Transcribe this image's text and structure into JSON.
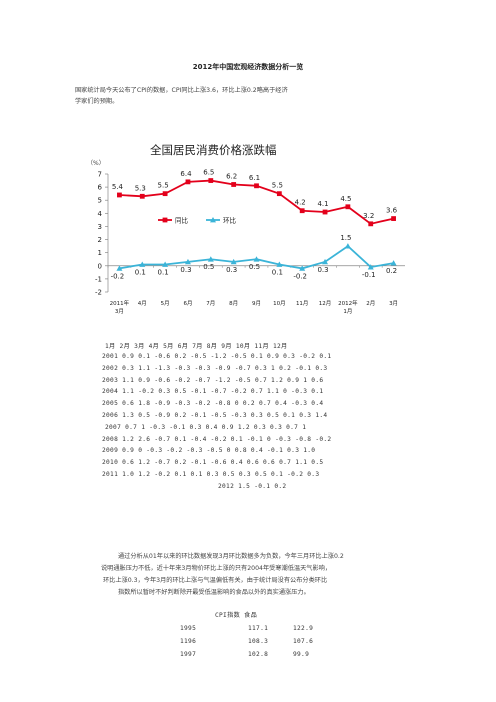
{
  "title": "2012年中国宏观经济数据分析一览",
  "intro": [
    "国家统计局今天公布了CPI的数据，CPI同比上涨3.6，环比上涨0.2略高于经济",
    "学家们的预期。"
  ],
  "chart_data": {
    "type": "line",
    "title": "全国居民消费价格涨跌幅",
    "unit": "（%）",
    "categories": [
      "2011年3月",
      "4月",
      "5月",
      "6月",
      "7月",
      "8月",
      "9月",
      "10月",
      "11月",
      "12月",
      "2012年1月",
      "2月",
      "3月"
    ],
    "ylim": [
      -2,
      7
    ],
    "yticks": [
      "7",
      "6",
      "5",
      "4",
      "3",
      "2",
      "1",
      "0",
      "-1",
      "-2"
    ],
    "series": [
      {
        "name": "同比",
        "color": "#e3001b",
        "values": [
          5.4,
          5.3,
          5.5,
          6.4,
          6.5,
          6.2,
          6.1,
          5.5,
          4.2,
          4.1,
          4.5,
          3.2,
          3.6
        ],
        "labels": [
          "5.4",
          "5.3",
          "5.5",
          "6.4",
          "6.5",
          "6.2",
          "6.1",
          "5.5",
          "4.2",
          "4.1",
          "4.5",
          "3.2",
          "3.6"
        ]
      },
      {
        "name": "环比",
        "color": "#3bb4d8",
        "values": [
          -0.2,
          0.1,
          0.1,
          0.3,
          0.5,
          0.3,
          0.5,
          0.1,
          -0.2,
          0.3,
          1.5,
          -0.1,
          0.2
        ],
        "labels": [
          "-0.2",
          "0.1",
          "0.1",
          "0.3",
          "0.5",
          "0.3",
          "0.5",
          "0.1",
          "-0.2",
          "0.3",
          "1.5",
          "-0.1",
          "0.2"
        ]
      }
    ],
    "legend": "inside-center"
  },
  "table": {
    "header": "1月   2月   3月   4月      5月   6月   7月   8月    9月   10月   11月   12月",
    "rows": [
      "2001  0.9  0.1  -0.6  0.2  -0.5  -1.2  -0.5  0.1  0.9  0.3  -0.2   0.1",
      "2002  0.3  1.1  -1.3  -0.3  -0.3  -0.9  -0.7  0.3  1    0.2  -0.1   0.3",
      "2003  1.1  0.9  -0.6  -0.2  -0.7  -1.2  -0.5  0.7  1.2  0.9  1      0.6",
      "2004  1.1  -0.2  0.3  0.5  -0.1  -0.7  -0.2  0.7  1.1  0    -0.3   0.1",
      "2005  0.6  1.8  -0.9  -0.3  -0.2  -0.8  0    0.2  0.7  0.4  -0.3   0.4",
      "2006  1.3  0.5  -0.9  0.2  -0.1  -0.5  -0.3  0.3  0.5  0.1  0.3    1.4",
      "2007  0.7  1    -0.3  -0.1  0.3  0.4  0.9  1.2  0.3  0.3  0.7    1",
      "2008  1.2  2.6  -0.7  0.1  -0.4  -0.2  0.1  -0.1  0    -0.3  -0.8  -0.2",
      "2009  0.9  0    -0.3  -0.2  -0.3  -0.5  0    0.8  0.4  -0.1  0.3   1.0",
      "2010  0.6  1.2  -0.7  0.2  -0.1  -0.6  0.4  0.6  0.6  0.7  1.1    0.5",
      "2011  1.0  1.2  -0.2  0.1  0.1   0.3  0.5  0.3  0.5  0.1  -0.2   0.3",
      "2012   1.5  -0.1  0.2"
    ]
  },
  "analysis": [
    "通过分析从01年以来的环比数据发现3月环比数据多为负数，今年三月环比上涨0.2",
    "说明通胀压力不低，近十年来3月物价环比上涨的只有2004年受寒潮低温天气影响，",
    "环比上涨0.3，今年3月的环比上涨与气温偏低有关，由于统计局没有公布分类环比",
    "指数所以暂时不好判断除开最受低温影响的食品以外的真实通涨压力。"
  ],
  "cpi_table": {
    "header": "CPI指数      食品",
    "rows": [
      {
        "year": "1995",
        "cpi": "117.1",
        "food": "122.9"
      },
      {
        "year": "1196",
        "cpi": "108.3",
        "food": "107.6"
      },
      {
        "year": "1997",
        "cpi": "102.8",
        "food": "99.9"
      }
    ]
  }
}
